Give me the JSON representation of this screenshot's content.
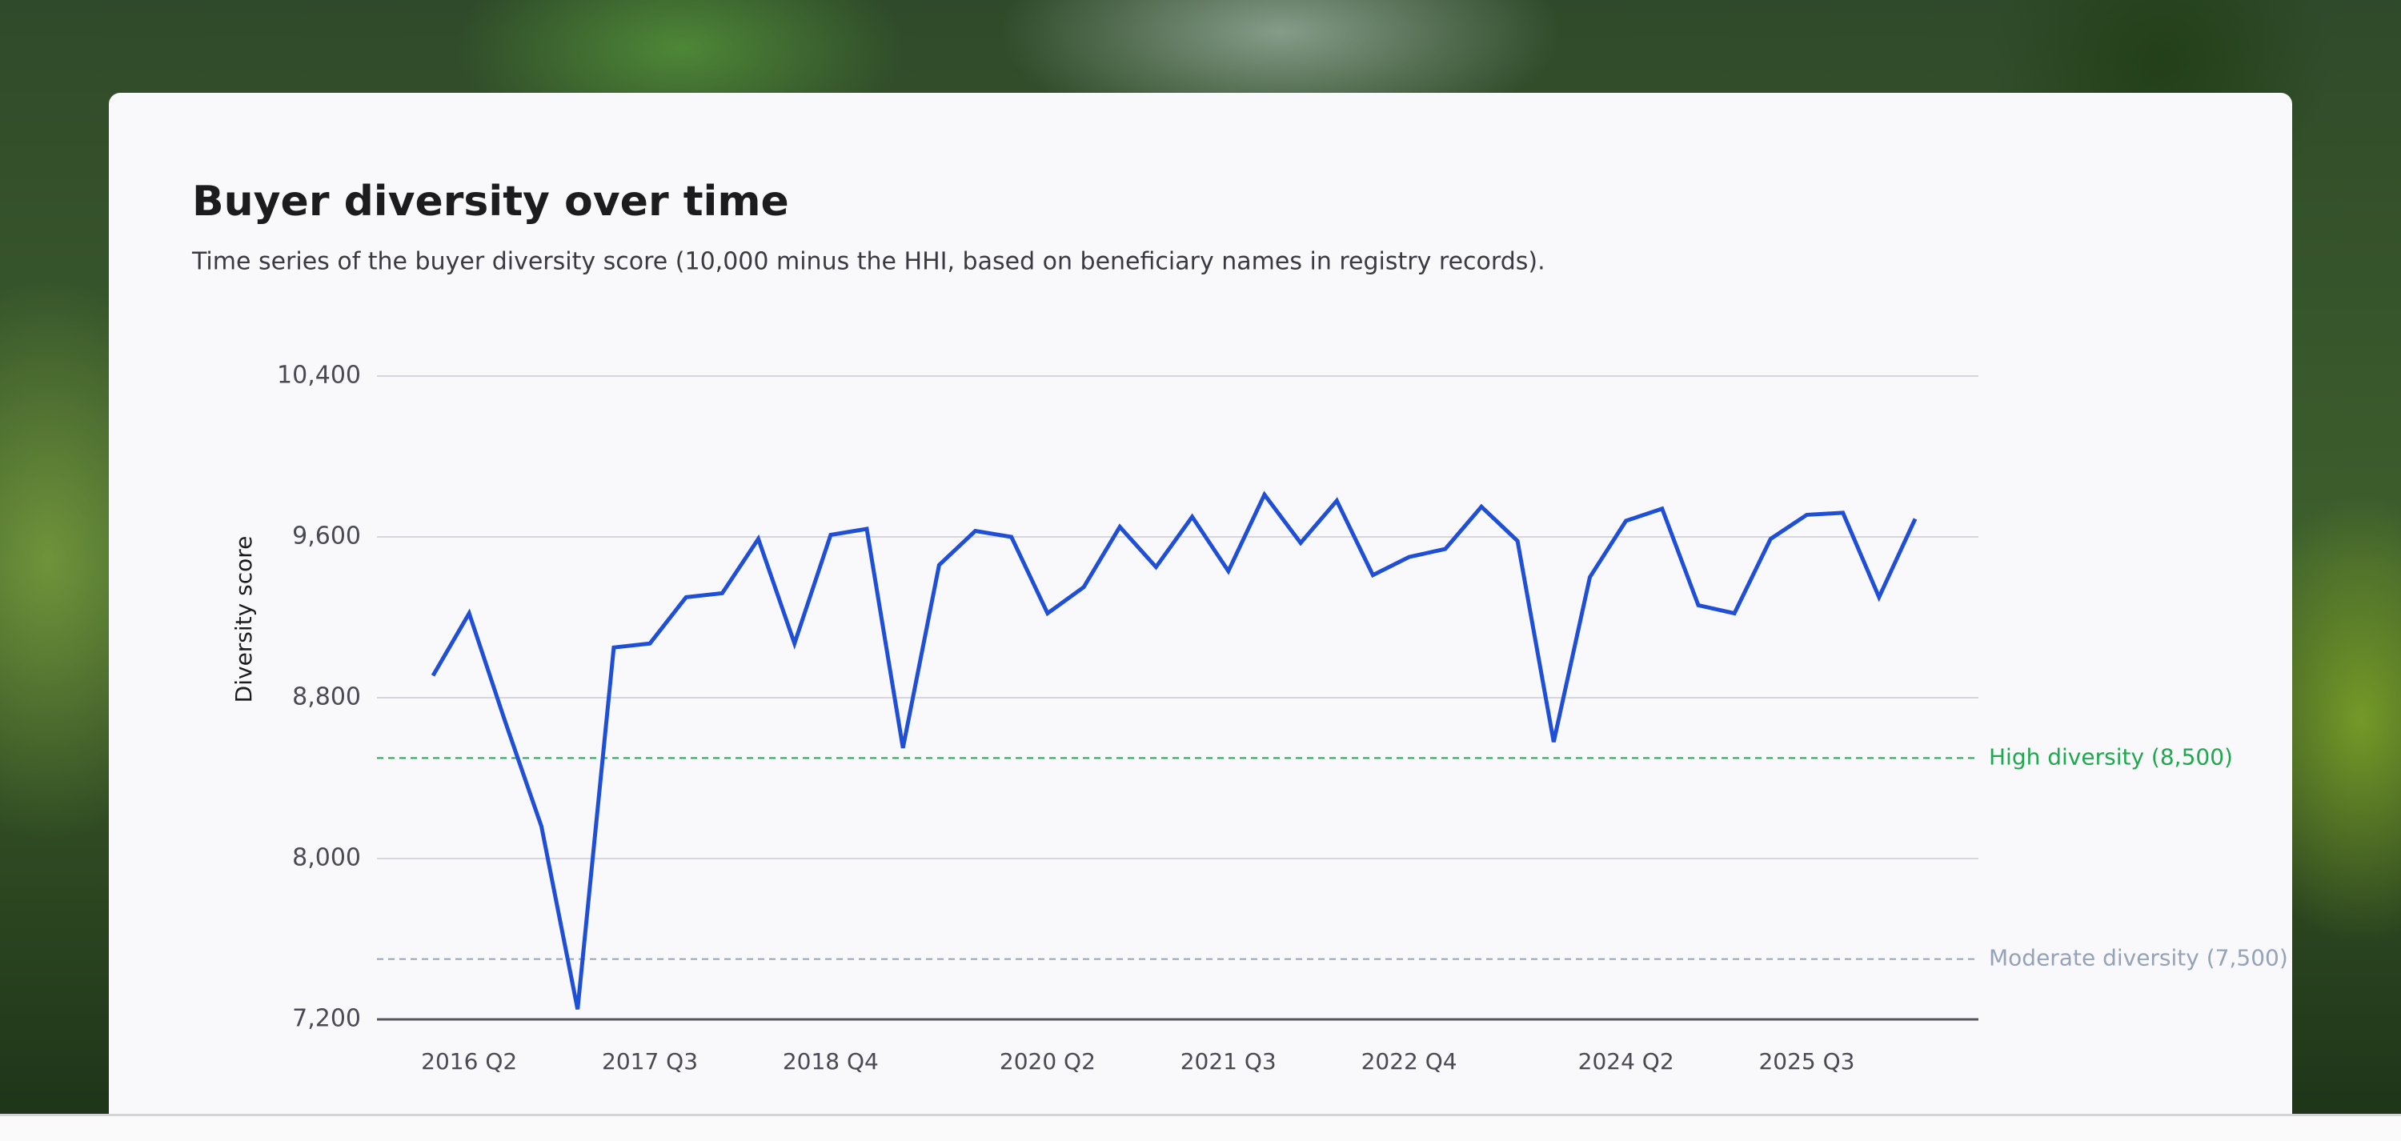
{
  "chart_data": {
    "type": "line",
    "title": "Buyer diversity over time",
    "subtitle": "Time series of the buyer diversity score (10,000 minus the HHI, based on beneficiary names in registry records).",
    "y_label": "Diversity score",
    "categories": [
      null,
      "2016 Q2",
      null,
      null,
      null,
      null,
      "2017 Q3",
      null,
      null,
      null,
      null,
      "2018 Q4",
      null,
      null,
      null,
      null,
      null,
      "2020 Q2",
      null,
      null,
      null,
      null,
      "2021 Q3",
      null,
      null,
      null,
      null,
      "2022 Q4",
      null,
      null,
      null,
      null,
      null,
      "2024 Q2",
      null,
      null,
      null,
      null,
      "2025 Q3",
      null,
      null,
      null
    ],
    "series": [
      {
        "color": "#1f4fd6",
        "values": [
          8910,
          9220,
          8680,
          8160,
          7250,
          9050,
          9070,
          9300,
          9320,
          9590,
          9070,
          9610,
          9640,
          8550,
          9460,
          9630,
          9600,
          9220,
          9350,
          9650,
          9450,
          9700,
          9430,
          9810,
          9570,
          9780,
          9410,
          9500,
          9540,
          9750,
          9580,
          8580,
          9400,
          9680,
          9740,
          9260,
          9220,
          9590,
          9710,
          9720,
          9300,
          9690
        ]
      }
    ],
    "ylim": [
      7200,
      10400
    ],
    "yticks": [
      {
        "value": 7200,
        "label": "7,200"
      },
      {
        "value": 8000,
        "label": "8,000"
      },
      {
        "value": 8800,
        "label": "8,800"
      },
      {
        "value": 9600,
        "label": "9,600"
      },
      {
        "value": 10400,
        "label": "10,400"
      }
    ],
    "grid": true,
    "reference_lines": [
      {
        "value": 8500,
        "label": "High diversity (8,500)",
        "color": "#1fa84f"
      },
      {
        "value": 7500,
        "label": "Moderate diversity (7,500)",
        "color": "#94a3b8"
      }
    ]
  }
}
